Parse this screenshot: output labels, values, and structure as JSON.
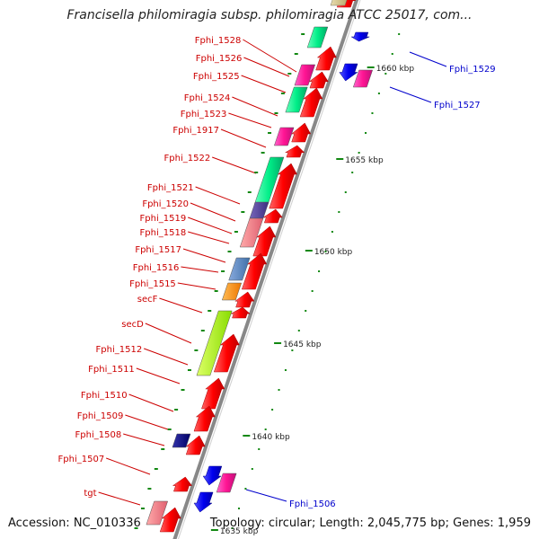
{
  "title": "Francisella philomiragia subsp. philomiragia ATCC 25017, com...",
  "footer": {
    "accession": "Accession: NC_010336",
    "summary": "Topology: circular; Length: 2,045,775 bp; Genes: 1,959"
  },
  "colors": {
    "backbone": "#888888",
    "forward_label": "#cc0000",
    "reverse_label": "#0000cc",
    "cds_forward": "#ff0000",
    "cds_reverse": "#0000ee",
    "tick": "#118811",
    "tick_label": "#222222"
  },
  "ruler": [
    {
      "label": "1660 kbp"
    },
    {
      "label": "1655 kbp"
    },
    {
      "label": "1650 kbp"
    },
    {
      "label": "1645 kbp"
    },
    {
      "label": "1640 kbp"
    },
    {
      "label": "1635 kbp"
    }
  ],
  "forward_labels": [
    {
      "name": "Fphi_1528"
    },
    {
      "name": "Fphi_1526"
    },
    {
      "name": "Fphi_1525"
    },
    {
      "name": "Fphi_1524"
    },
    {
      "name": "Fphi_1523"
    },
    {
      "name": "Fphi_1917"
    },
    {
      "name": "Fphi_1522"
    },
    {
      "name": "Fphi_1521"
    },
    {
      "name": "Fphi_1520"
    },
    {
      "name": "Fphi_1519"
    },
    {
      "name": "Fphi_1518"
    },
    {
      "name": "Fphi_1517"
    },
    {
      "name": "Fphi_1516"
    },
    {
      "name": "Fphi_1515"
    },
    {
      "name": "secF"
    },
    {
      "name": "secD"
    },
    {
      "name": "Fphi_1512"
    },
    {
      "name": "Fphi_1511"
    },
    {
      "name": "Fphi_1510"
    },
    {
      "name": "Fphi_1509"
    },
    {
      "name": "Fphi_1508"
    },
    {
      "name": "Fphi_1507"
    },
    {
      "name": "tgt"
    }
  ],
  "reverse_labels": [
    {
      "name": "Fphi_1529"
    },
    {
      "name": "Fphi_1527"
    },
    {
      "name": "Fphi_1506"
    }
  ],
  "forward_genes": [
    {
      "function": "cog-green"
    },
    {
      "function": "cog-magenta"
    },
    {
      "function": "cog-green"
    },
    {
      "function": "cog-magenta"
    },
    {
      "function": "cog-green"
    },
    {
      "function": "cog-purple"
    },
    {
      "function": "cog-pink"
    },
    {
      "function": "cog-steelblue"
    },
    {
      "function": "cog-orange"
    },
    {
      "function": "cog-lime"
    },
    {
      "function": "cog-navy"
    },
    {
      "function": "cog-pink"
    }
  ],
  "reverse_genes": [
    {
      "function": "cog-magenta"
    },
    {
      "function": "cog-magenta"
    }
  ]
}
